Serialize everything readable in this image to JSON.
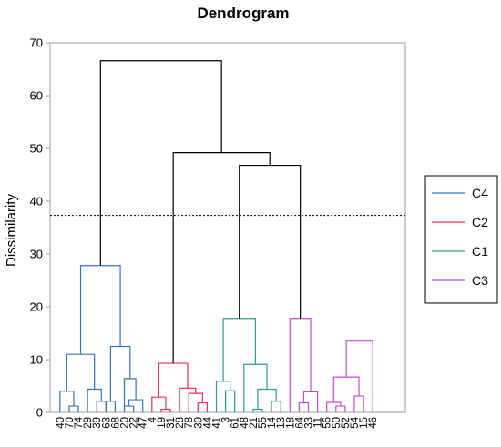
{
  "chart_data": {
    "type": "dendrogram",
    "title": "Dendrogram",
    "ylabel": "Dissimilarity",
    "xlabel": "",
    "ylim": [
      0,
      70
    ],
    "yticks": [
      0,
      10,
      20,
      30,
      40,
      50,
      60,
      70
    ],
    "cut_line": 37.3,
    "leaves": [
      "40",
      "70",
      "74",
      "29",
      "39",
      "63",
      "68",
      "20",
      "22",
      "47",
      "4",
      "19",
      "31",
      "28",
      "78",
      "30",
      "44",
      "41",
      "3",
      "61",
      "48",
      "21",
      "55",
      "14",
      "13",
      "18",
      "64",
      "33",
      "11",
      "56",
      "50",
      "52",
      "54",
      "15",
      "46"
    ],
    "colors": {
      "C4": "#3a73b5",
      "C2": "#cf3a52",
      "C1": "#2a9d8f",
      "C3": "#c04fc8",
      "root": "#000000"
    },
    "legend": [
      {
        "name": "C4",
        "color": "#3a73b5"
      },
      {
        "name": "C2",
        "color": "#cf3a52"
      },
      {
        "name": "C1",
        "color": "#2a9d8f"
      },
      {
        "name": "C3",
        "color": "#c04fc8"
      }
    ],
    "merges": [
      {
        "id": "a1",
        "left": "L1",
        "right": "L2",
        "height": 1.2,
        "cluster": "C4"
      },
      {
        "id": "a2",
        "left": "L0",
        "right": "a1",
        "height": 4.0,
        "cluster": "C4"
      },
      {
        "id": "a3",
        "left": "L4",
        "right": "L5",
        "height": 2.1,
        "cluster": "C4"
      },
      {
        "id": "a4",
        "left": "L3",
        "right": "a3",
        "height": 4.4,
        "cluster": "C4"
      },
      {
        "id": "a5",
        "left": "a2",
        "right": "a4",
        "height": 11.0,
        "cluster": "C4"
      },
      {
        "id": "a6",
        "left": "L5b",
        "right": "L6",
        "height": 2.1,
        "cluster": "C4"
      },
      {
        "id": "a7",
        "left": "L7",
        "right": "L8",
        "height": 1.2,
        "cluster": "C4"
      },
      {
        "id": "a8",
        "left": "a7",
        "right": "L9",
        "height": 2.4,
        "cluster": "C4"
      },
      {
        "id": "a9",
        "left": "a8b",
        "right": "a8",
        "height": 6.4,
        "cluster": "C4"
      },
      {
        "id": "a10",
        "left": "a6",
        "right": "a9",
        "height": 12.5,
        "cluster": "C4"
      },
      {
        "id": "a11",
        "left": "a5",
        "right": "a10",
        "height": 27.8,
        "cluster": "C4"
      },
      {
        "id": "b1",
        "left": "L11",
        "right": "L12",
        "height": 0.6,
        "cluster": "C2"
      },
      {
        "id": "b2",
        "left": "L10",
        "right": "b1",
        "height": 2.9,
        "cluster": "C2"
      },
      {
        "id": "b3",
        "left": "L15",
        "right": "L16",
        "height": 1.8,
        "cluster": "C2"
      },
      {
        "id": "b4",
        "left": "L14",
        "right": "b3",
        "height": 3.6,
        "cluster": "C2"
      },
      {
        "id": "b5",
        "left": "L13",
        "right": "b4",
        "height": 4.6,
        "cluster": "C2"
      },
      {
        "id": "b6",
        "left": "b2",
        "right": "b5",
        "height": 9.3,
        "cluster": "C2"
      },
      {
        "id": "c1",
        "left": "L18",
        "right": "L19",
        "height": 4.1,
        "cluster": "C1"
      },
      {
        "id": "c2",
        "left": "L17",
        "right": "c1",
        "height": 5.9,
        "cluster": "C1"
      },
      {
        "id": "c3",
        "left": "L21",
        "right": "L22",
        "height": 0.6,
        "cluster": "C1"
      },
      {
        "id": "c4",
        "left": "L23",
        "right": "L24",
        "height": 2.1,
        "cluster": "C1"
      },
      {
        "id": "c5",
        "left": "c3",
        "right": "c4",
        "height": 4.4,
        "cluster": "C1"
      },
      {
        "id": "c6",
        "left": "L20",
        "right": "c5",
        "height": 9.1,
        "cluster": "C1"
      },
      {
        "id": "c7",
        "left": "c2",
        "right": "c6",
        "height": 17.8,
        "cluster": "C1"
      },
      {
        "id": "d1",
        "left": "L26",
        "right": "L27",
        "height": 1.8,
        "cluster": "C3"
      },
      {
        "id": "d2",
        "left": "L28",
        "right": "d1",
        "height": 3.9,
        "cluster": "C3"
      },
      {
        "id": "d3",
        "left": "L25",
        "right": "d2",
        "height": 17.8,
        "cluster": "C3"
      },
      {
        "id": "d4",
        "left": "L30",
        "right": "L31",
        "height": 1.2,
        "cluster": "C3"
      },
      {
        "id": "d5",
        "left": "L29",
        "right": "d4",
        "height": 1.9,
        "cluster": "C3"
      },
      {
        "id": "d6",
        "left": "L32",
        "right": "L33",
        "height": 3.1,
        "cluster": "C3"
      },
      {
        "id": "d7",
        "left": "d5",
        "right": "d6",
        "height": 6.7,
        "cluster": "C3"
      },
      {
        "id": "d8",
        "left": "L34",
        "right": "d7",
        "height": 13.5,
        "cluster": "C3"
      },
      {
        "id": "r1",
        "left": "c7",
        "right": "d3",
        "height": 46.8,
        "cluster": "root"
      },
      {
        "id": "r2",
        "left": "b6",
        "right": "r1",
        "height": 49.2,
        "cluster": "root"
      },
      {
        "id": "r3",
        "left": "a11",
        "right": "r2",
        "height": 66.6,
        "cluster": "root"
      }
    ]
  }
}
